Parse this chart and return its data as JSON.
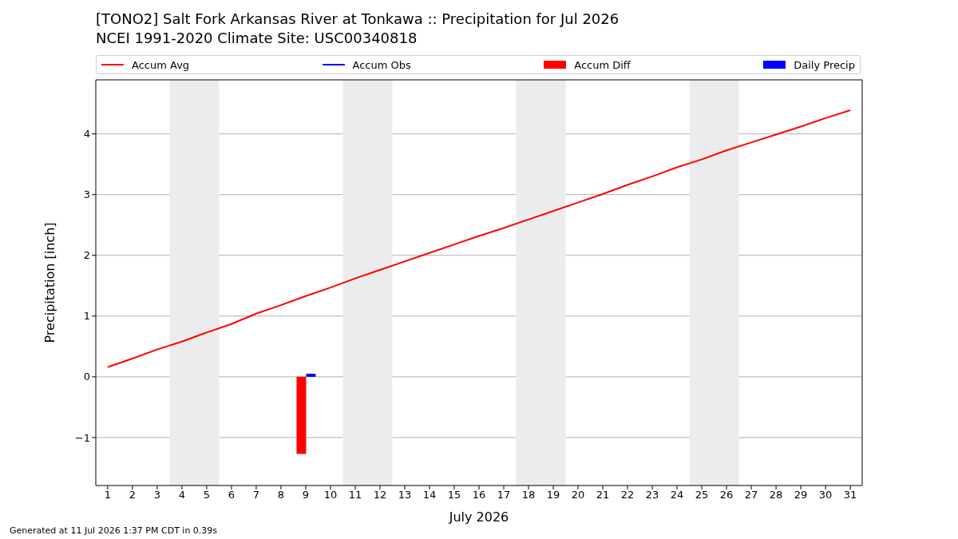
{
  "chart_data": {
    "type": "line",
    "title": "[TONO2] Salt Fork Arkansas River at Tonkawa :: Precipitation for Jul 2026",
    "subtitle": "NCEI 1991-2020 Climate Site: USC00340818",
    "xlabel": "July 2026",
    "ylabel": "Precipitation [inch]",
    "x": [
      1,
      2,
      3,
      4,
      5,
      6,
      7,
      8,
      9,
      10,
      11,
      12,
      13,
      14,
      15,
      16,
      17,
      18,
      19,
      20,
      21,
      22,
      23,
      24,
      25,
      26,
      27,
      28,
      29,
      30,
      31
    ],
    "series": [
      {
        "name": "Accum Avg",
        "color": "#ff0000",
        "values": [
          0.16,
          0.3,
          0.45,
          0.58,
          0.73,
          0.87,
          1.04,
          1.18,
          1.33,
          1.47,
          1.62,
          1.76,
          1.9,
          2.04,
          2.18,
          2.32,
          2.45,
          2.59,
          2.73,
          2.87,
          3.01,
          3.16,
          3.3,
          3.45,
          3.58,
          3.73,
          3.86,
          3.99,
          4.12,
          4.26,
          4.39
        ]
      },
      {
        "name": "Accum Obs",
        "color": "#0000ff",
        "values": [
          null,
          null,
          null,
          null,
          null,
          null,
          null,
          null,
          null,
          null,
          null,
          null,
          null,
          null,
          null,
          null,
          null,
          null,
          null,
          null,
          null,
          null,
          null,
          null,
          null,
          null,
          null,
          null,
          null,
          null,
          null
        ]
      },
      {
        "name": "Accum Diff",
        "type": "bar",
        "color": "#ff0000",
        "values": [
          null,
          null,
          null,
          null,
          null,
          null,
          null,
          null,
          -1.27,
          null,
          null,
          null,
          null,
          null,
          null,
          null,
          null,
          null,
          null,
          null,
          null,
          null,
          null,
          null,
          null,
          null,
          null,
          null,
          null,
          null,
          null
        ]
      },
      {
        "name": "Daily Precip",
        "type": "bar",
        "color": "#0000ff",
        "values": [
          null,
          null,
          null,
          null,
          null,
          null,
          null,
          null,
          0.05,
          null,
          null,
          null,
          null,
          null,
          null,
          null,
          null,
          null,
          null,
          null,
          null,
          null,
          null,
          null,
          null,
          null,
          null,
          null,
          null,
          null,
          null
        ]
      }
    ],
    "xlim": [
      0.52,
      31.48
    ],
    "xticks": [
      1,
      2,
      3,
      4,
      5,
      6,
      7,
      8,
      9,
      10,
      11,
      12,
      13,
      14,
      15,
      16,
      17,
      18,
      19,
      20,
      21,
      22,
      23,
      24,
      25,
      26,
      27,
      28,
      29,
      30,
      31
    ],
    "ylim": [
      -1.79,
      4.89
    ],
    "yticks": [
      {
        "value": -1,
        "label": "−1"
      },
      0,
      1,
      2,
      3,
      4
    ],
    "bands": [
      {
        "axis": "x",
        "from": 3.5,
        "to": 5.5,
        "color": "#ececec"
      },
      {
        "axis": "x",
        "from": 10.5,
        "to": 12.5,
        "color": "#ececec"
      },
      {
        "axis": "x",
        "from": 17.5,
        "to": 19.5,
        "color": "#ececec"
      },
      {
        "axis": "x",
        "from": 24.5,
        "to": 26.5,
        "color": "#ececec"
      }
    ],
    "grid": "y",
    "legend": "top",
    "marker": "none",
    "line_style": "solid",
    "annotations": [
      "Generated at 11 Jul 2026 1:37 PM CDT in 0.39s"
    ]
  }
}
